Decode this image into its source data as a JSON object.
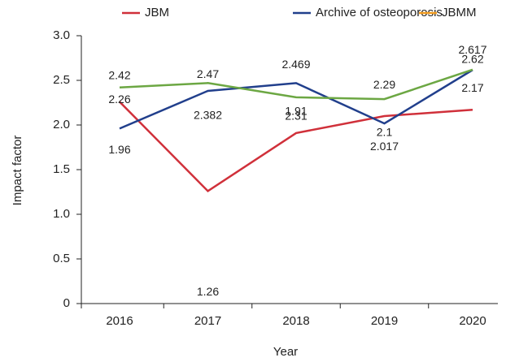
{
  "chart_data": {
    "type": "line",
    "x_label": "Year",
    "y_label": "Impact factor",
    "categories": [
      "2016",
      "2017",
      "2018",
      "2019",
      "2020"
    ],
    "series": [
      {
        "name": "JBM",
        "color": "#d0303a",
        "values": [
          2.26,
          1.26,
          1.91,
          2.1,
          2.17
        ]
      },
      {
        "name": "Archive of osteoporosis",
        "color": "#213f8c",
        "values": [
          1.96,
          2.382,
          2.469,
          2.017,
          2.617
        ]
      },
      {
        "name": "JBMM",
        "color": "#6ca743",
        "legend_color": "#f39c1f",
        "values": [
          2.42,
          2.47,
          2.31,
          2.29,
          2.62
        ]
      }
    ],
    "ylim": [
      0,
      3.0
    ],
    "yticks": [
      0,
      {
        "value": 0.5,
        "label": "0.5"
      },
      {
        "value": 1,
        "label": "1.0"
      },
      {
        "value": 1.5,
        "label": "1.5"
      },
      {
        "value": 2,
        "label": "2.0"
      },
      {
        "value": 2.5,
        "label": "2.5"
      },
      {
        "value": 3,
        "label": "3.0"
      }
    ],
    "legend": "top"
  }
}
